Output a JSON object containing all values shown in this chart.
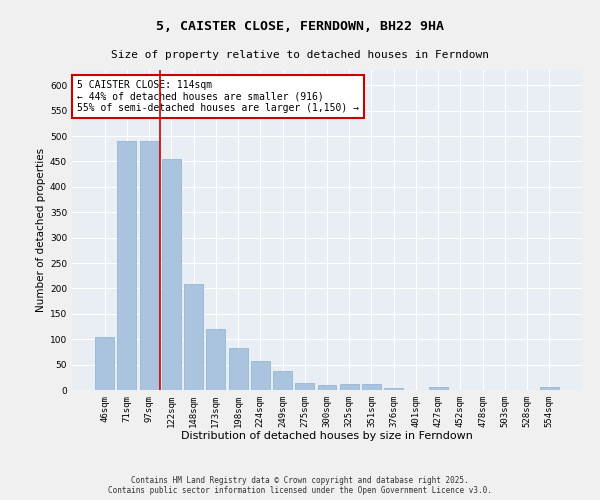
{
  "title": "5, CAISTER CLOSE, FERNDOWN, BH22 9HA",
  "subtitle": "Size of property relative to detached houses in Ferndown",
  "xlabel": "Distribution of detached houses by size in Ferndown",
  "ylabel": "Number of detached properties",
  "footer": "Contains HM Land Registry data © Crown copyright and database right 2025.\nContains public sector information licensed under the Open Government Licence v3.0.",
  "categories": [
    "46sqm",
    "71sqm",
    "97sqm",
    "122sqm",
    "148sqm",
    "173sqm",
    "198sqm",
    "224sqm",
    "249sqm",
    "275sqm",
    "300sqm",
    "325sqm",
    "351sqm",
    "376sqm",
    "401sqm",
    "427sqm",
    "452sqm",
    "478sqm",
    "503sqm",
    "528sqm",
    "554sqm"
  ],
  "values": [
    105,
    490,
    490,
    455,
    208,
    120,
    82,
    57,
    38,
    13,
    10,
    11,
    11,
    3,
    0,
    5,
    0,
    0,
    0,
    0,
    5
  ],
  "bar_color": "#aac4e0",
  "bar_edge_color": "#8ab0d0",
  "red_line_x": 2.5,
  "vline_color": "#cc0000",
  "annotation_text": "5 CAISTER CLOSE: 114sqm\n← 44% of detached houses are smaller (916)\n55% of semi-detached houses are larger (1,150) →",
  "annotation_box_color": "#ffffff",
  "annotation_box_edge": "#cc0000",
  "ylim": [
    0,
    630
  ],
  "yticks": [
    0,
    50,
    100,
    150,
    200,
    250,
    300,
    350,
    400,
    450,
    500,
    550,
    600
  ],
  "bg_color": "#e8eef4",
  "grid_color": "#ffffff",
  "title_fontsize": 9.5,
  "subtitle_fontsize": 8,
  "annotation_fontsize": 7,
  "ylabel_fontsize": 7.5,
  "xlabel_fontsize": 8,
  "tick_fontsize": 6.5,
  "footer_fontsize": 5.5
}
